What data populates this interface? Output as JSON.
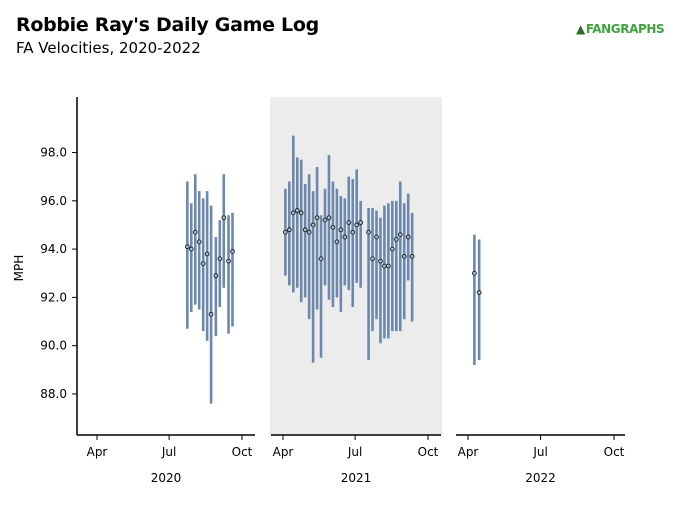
{
  "header": {
    "title": "Robbie Ray's Daily Game Log",
    "subtitle": "FA Velocities, 2020-2022",
    "logo_text": "FANGRAPHS"
  },
  "colors": {
    "bar": "#6c88ab",
    "point_fill": "#9fc3d6",
    "point_stroke": "#1a1a1a",
    "highlight_panel": "#ececec"
  },
  "chart_data": {
    "type": "errorbar",
    "title": "Robbie Ray's Daily Game Log",
    "subtitle": "FA Velocities, 2020-2022",
    "ylabel": "MPH",
    "ylim": [
      86.3,
      100.3
    ],
    "yticks": [
      "88.0",
      "90.0",
      "92.0",
      "94.0",
      "96.0",
      "98.0"
    ],
    "grid": false,
    "month_ticks": [
      "Apr",
      "Jul",
      "Oct"
    ],
    "panels": [
      {
        "year": "2020",
        "highlighted": false,
        "games": [
          {
            "date": "2020-07-24",
            "min": 90.7,
            "max": 96.8,
            "avg": 94.1
          },
          {
            "date": "2020-07-29",
            "min": 91.4,
            "max": 95.9,
            "avg": 94.0
          },
          {
            "date": "2020-08-03",
            "min": 91.7,
            "max": 97.1,
            "avg": 94.7
          },
          {
            "date": "2020-08-08",
            "min": 91.5,
            "max": 96.4,
            "avg": 94.3
          },
          {
            "date": "2020-08-13",
            "min": 90.6,
            "max": 96.1,
            "avg": 93.4
          },
          {
            "date": "2020-08-18",
            "min": 90.2,
            "max": 96.4,
            "avg": 93.8
          },
          {
            "date": "2020-08-23",
            "min": 87.6,
            "max": 95.8,
            "avg": 91.3
          },
          {
            "date": "2020-08-29",
            "min": 90.4,
            "max": 94.5,
            "avg": 92.9
          },
          {
            "date": "2020-09-03",
            "min": 91.6,
            "max": 95.2,
            "avg": 93.6
          },
          {
            "date": "2020-09-08",
            "min": 92.4,
            "max": 97.1,
            "avg": 95.3
          },
          {
            "date": "2020-09-14",
            "min": 90.5,
            "max": 95.4,
            "avg": 93.5
          },
          {
            "date": "2020-09-19",
            "min": 90.8,
            "max": 95.5,
            "avg": 93.9
          }
        ]
      },
      {
        "year": "2021",
        "highlighted": true,
        "games": [
          {
            "date": "2021-04-04",
            "min": 92.9,
            "max": 96.5,
            "avg": 94.7
          },
          {
            "date": "2021-04-09",
            "min": 92.5,
            "max": 96.8,
            "avg": 94.8
          },
          {
            "date": "2021-04-14",
            "min": 92.2,
            "max": 98.7,
            "avg": 95.5
          },
          {
            "date": "2021-04-19",
            "min": 92.4,
            "max": 97.8,
            "avg": 95.6
          },
          {
            "date": "2021-04-24",
            "min": 91.8,
            "max": 97.7,
            "avg": 95.5
          },
          {
            "date": "2021-04-29",
            "min": 92.0,
            "max": 96.7,
            "avg": 94.8
          },
          {
            "date": "2021-05-04",
            "min": 91.1,
            "max": 97.1,
            "avg": 94.7
          },
          {
            "date": "2021-05-09",
            "min": 89.3,
            "max": 96.4,
            "avg": 95.0
          },
          {
            "date": "2021-05-14",
            "min": 91.5,
            "max": 97.4,
            "avg": 95.3
          },
          {
            "date": "2021-05-19",
            "min": 89.5,
            "max": 95.4,
            "avg": 93.6
          },
          {
            "date": "2021-05-24",
            "min": 92.5,
            "max": 96.5,
            "avg": 95.2
          },
          {
            "date": "2021-05-29",
            "min": 91.9,
            "max": 97.9,
            "avg": 95.3
          },
          {
            "date": "2021-06-03",
            "min": 91.6,
            "max": 96.8,
            "avg": 94.9
          },
          {
            "date": "2021-06-08",
            "min": 92.0,
            "max": 96.5,
            "avg": 94.3
          },
          {
            "date": "2021-06-13",
            "min": 91.4,
            "max": 96.2,
            "avg": 94.8
          },
          {
            "date": "2021-06-18",
            "min": 92.5,
            "max": 96.1,
            "avg": 94.5
          },
          {
            "date": "2021-06-23",
            "min": 92.3,
            "max": 97.0,
            "avg": 95.1
          },
          {
            "date": "2021-06-28",
            "min": 91.6,
            "max": 96.9,
            "avg": 94.7
          },
          {
            "date": "2021-07-03",
            "min": 92.6,
            "max": 97.3,
            "avg": 95.0
          },
          {
            "date": "2021-07-08",
            "min": 92.4,
            "max": 96.0,
            "avg": 95.1
          },
          {
            "date": "2021-07-18",
            "min": 89.4,
            "max": 95.7,
            "avg": 94.7
          },
          {
            "date": "2021-07-23",
            "min": 90.6,
            "max": 95.7,
            "avg": 93.6
          },
          {
            "date": "2021-07-28",
            "min": 91.1,
            "max": 95.6,
            "avg": 94.5
          },
          {
            "date": "2021-08-02",
            "min": 90.1,
            "max": 95.3,
            "avg": 93.5
          },
          {
            "date": "2021-08-07",
            "min": 90.3,
            "max": 95.8,
            "avg": 93.3
          },
          {
            "date": "2021-08-12",
            "min": 90.3,
            "max": 95.9,
            "avg": 93.3
          },
          {
            "date": "2021-08-17",
            "min": 90.6,
            "max": 96.0,
            "avg": 94.0
          },
          {
            "date": "2021-08-22",
            "min": 90.6,
            "max": 96.0,
            "avg": 94.4
          },
          {
            "date": "2021-08-27",
            "min": 90.6,
            "max": 96.8,
            "avg": 94.6
          },
          {
            "date": "2021-09-01",
            "min": 91.1,
            "max": 95.9,
            "avg": 93.7
          },
          {
            "date": "2021-09-06",
            "min": 92.7,
            "max": 96.3,
            "avg": 94.5
          },
          {
            "date": "2021-09-11",
            "min": 91.0,
            "max": 95.5,
            "avg": 93.7
          }
        ]
      },
      {
        "year": "2022",
        "highlighted": false,
        "games": [
          {
            "date": "2022-04-09",
            "min": 89.2,
            "max": 94.6,
            "avg": 93.0
          },
          {
            "date": "2022-04-15",
            "min": 89.4,
            "max": 94.4,
            "avg": 92.2
          }
        ]
      }
    ]
  }
}
